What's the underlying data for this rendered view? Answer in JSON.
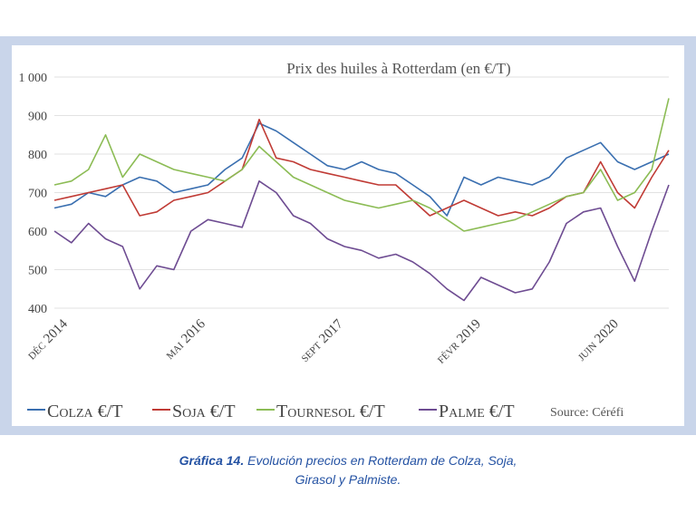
{
  "chart_data": {
    "type": "line",
    "title": "Prix des huiles à Rotterdam (en €/T)",
    "source": "Source: Céréfi",
    "ylim": [
      400,
      1000
    ],
    "y_ticks": [
      "400",
      "500",
      "600",
      "700",
      "800",
      "900",
      "1 000"
    ],
    "x_ticks": [
      "déc 2014",
      "mai 2016",
      "sept 2017",
      "févr 2019",
      "juin 2020"
    ],
    "grid": true,
    "legend_position": "bottom",
    "x": [
      0,
      2,
      4,
      6,
      8,
      10,
      12,
      14,
      16,
      18,
      20,
      22,
      24,
      26,
      28,
      30,
      32,
      34,
      36,
      38,
      40,
      42,
      44,
      46,
      48,
      50,
      52,
      54,
      56,
      58,
      60,
      62,
      64,
      66,
      68,
      70,
      72
    ],
    "series": [
      {
        "name": "Colza €/T",
        "color": "#3a6fb0",
        "values": [
          660,
          670,
          700,
          690,
          720,
          740,
          730,
          700,
          710,
          720,
          760,
          790,
          880,
          860,
          830,
          800,
          770,
          760,
          780,
          760,
          750,
          720,
          690,
          640,
          740,
          720,
          740,
          730,
          720,
          740,
          790,
          810,
          830,
          780,
          760,
          780,
          800
        ]
      },
      {
        "name": "Soja €/T",
        "color": "#c03b35",
        "values": [
          680,
          690,
          700,
          710,
          720,
          640,
          650,
          680,
          690,
          700,
          730,
          760,
          890,
          790,
          780,
          760,
          750,
          740,
          730,
          720,
          720,
          680,
          640,
          660,
          680,
          660,
          640,
          650,
          640,
          660,
          690,
          700,
          780,
          700,
          660,
          740,
          810
        ]
      },
      {
        "name": "Tournesol €/T",
        "color": "#8cbc55",
        "values": [
          720,
          730,
          760,
          850,
          740,
          800,
          780,
          760,
          750,
          740,
          730,
          760,
          820,
          780,
          740,
          720,
          700,
          680,
          670,
          660,
          670,
          680,
          660,
          630,
          600,
          610,
          620,
          630,
          650,
          670,
          690,
          700,
          760,
          680,
          700,
          760,
          945
        ]
      },
      {
        "name": "Palme €/T",
        "color": "#6e4c92",
        "values": [
          600,
          570,
          620,
          580,
          560,
          450,
          510,
          500,
          600,
          630,
          620,
          610,
          730,
          700,
          640,
          620,
          580,
          560,
          550,
          530,
          540,
          520,
          490,
          450,
          420,
          480,
          460,
          440,
          450,
          520,
          620,
          650,
          660,
          560,
          470,
          600,
          720
        ]
      }
    ]
  },
  "caption": {
    "lead": "Gráfica 14.",
    "line1": "Evolución precios en Rotterdam de Colza, Soja,",
    "line2": "Girasol y Palmiste."
  }
}
